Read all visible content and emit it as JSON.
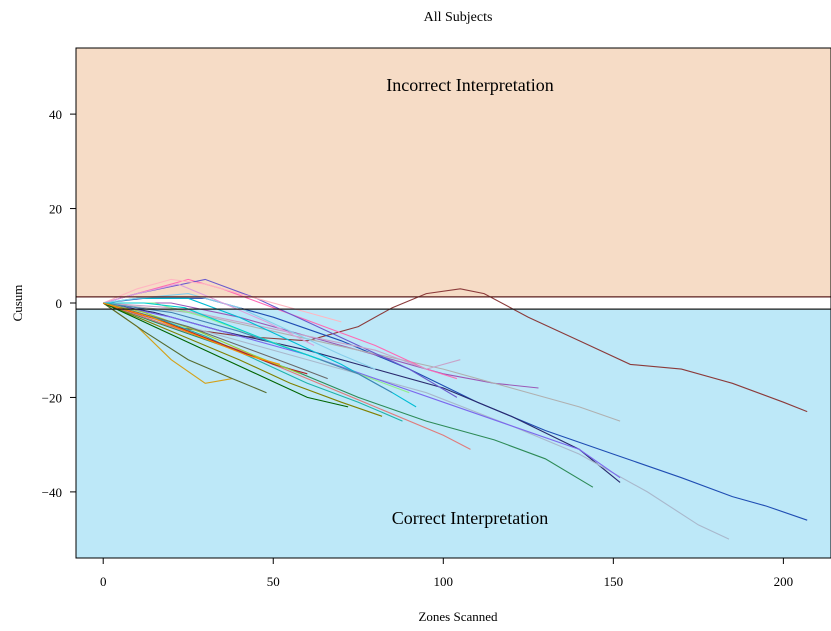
{
  "chart_data": {
    "type": "line",
    "title": "All Subjects",
    "xlabel": "Zones Scanned",
    "ylabel": "Cusum",
    "xlim": [
      -8,
      214
    ],
    "ylim": [
      -54,
      54
    ],
    "x_ticks": [
      0,
      50,
      100,
      150,
      200
    ],
    "y_ticks": [
      -40,
      -20,
      0,
      20,
      40
    ],
    "grid": false,
    "thresholds": {
      "upper": 1.3,
      "lower": -1.3
    },
    "regions": {
      "upper_label": "Incorrect Interpretation",
      "lower_label": "Correct Interpretation",
      "upper_color": "#f6dcc6",
      "lower_color": "#bde8f8"
    },
    "series": [
      {
        "color": "#8b3a3a",
        "points": [
          [
            0,
            0
          ],
          [
            20,
            -5
          ],
          [
            40,
            -7
          ],
          [
            60,
            -8
          ],
          [
            75,
            -5
          ],
          [
            85,
            -1
          ],
          [
            95,
            2
          ],
          [
            105,
            3
          ],
          [
            112,
            2
          ],
          [
            125,
            -3
          ],
          [
            140,
            -8
          ],
          [
            155,
            -13
          ],
          [
            170,
            -14
          ],
          [
            185,
            -17
          ],
          [
            200,
            -21
          ],
          [
            207,
            -23
          ]
        ]
      },
      {
        "color": "#1f4db3",
        "points": [
          [
            0,
            0
          ],
          [
            12,
            1
          ],
          [
            30,
            1
          ],
          [
            50,
            -3
          ],
          [
            70,
            -8
          ],
          [
            90,
            -14
          ],
          [
            110,
            -21
          ],
          [
            130,
            -27
          ],
          [
            150,
            -32
          ],
          [
            170,
            -37
          ],
          [
            185,
            -41
          ],
          [
            195,
            -43
          ],
          [
            207,
            -46
          ]
        ]
      },
      {
        "color": "#2a2a6e",
        "points": [
          [
            0,
            0
          ],
          [
            15,
            -2
          ],
          [
            35,
            -6
          ],
          [
            60,
            -10
          ],
          [
            80,
            -14
          ],
          [
            100,
            -18
          ],
          [
            120,
            -24
          ],
          [
            140,
            -31
          ],
          [
            152,
            -38
          ]
        ]
      },
      {
        "color": "#a9b8cc",
        "points": [
          [
            0,
            0
          ],
          [
            20,
            -4
          ],
          [
            45,
            -9
          ],
          [
            70,
            -14
          ],
          [
            95,
            -19
          ],
          [
            120,
            -26
          ],
          [
            140,
            -32
          ],
          [
            160,
            -40
          ],
          [
            175,
            -47
          ],
          [
            184,
            -50
          ]
        ]
      },
      {
        "color": "#2e8b57",
        "points": [
          [
            0,
            0
          ],
          [
            15,
            -4
          ],
          [
            35,
            -9
          ],
          [
            55,
            -14
          ],
          [
            75,
            -20
          ],
          [
            95,
            -25
          ],
          [
            115,
            -29
          ],
          [
            130,
            -33
          ],
          [
            144,
            -39
          ]
        ]
      },
      {
        "color": "#9b59b6",
        "points": [
          [
            0,
            0
          ],
          [
            20,
            0
          ],
          [
            40,
            -3
          ],
          [
            60,
            -7
          ],
          [
            80,
            -11
          ],
          [
            100,
            -15
          ],
          [
            115,
            -17
          ],
          [
            128,
            -18
          ]
        ]
      },
      {
        "color": "#b0b0b0",
        "points": [
          [
            0,
            0
          ],
          [
            25,
            -2
          ],
          [
            50,
            -6
          ],
          [
            75,
            -10
          ],
          [
            100,
            -14
          ],
          [
            120,
            -18
          ],
          [
            140,
            -22
          ],
          [
            152,
            -25
          ]
        ]
      },
      {
        "color": "#7b68ee",
        "points": [
          [
            0,
            0
          ],
          [
            20,
            -3
          ],
          [
            40,
            -7
          ],
          [
            60,
            -11
          ],
          [
            80,
            -16
          ],
          [
            100,
            -21
          ],
          [
            120,
            -26
          ],
          [
            140,
            -31
          ],
          [
            152,
            -37
          ]
        ]
      },
      {
        "color": "#ff69b4",
        "points": [
          [
            0,
            0
          ],
          [
            15,
            3
          ],
          [
            25,
            5
          ],
          [
            35,
            3
          ],
          [
            50,
            -1
          ],
          [
            65,
            -5
          ],
          [
            80,
            -9
          ],
          [
            95,
            -14
          ],
          [
            104,
            -16
          ]
        ]
      },
      {
        "color": "#6a5acd",
        "points": [
          [
            0,
            0
          ],
          [
            10,
            2
          ],
          [
            30,
            5
          ],
          [
            45,
            1
          ],
          [
            60,
            -4
          ],
          [
            75,
            -9
          ],
          [
            90,
            -14
          ],
          [
            104,
            -20
          ]
        ]
      },
      {
        "color": "#c8a2c8",
        "points": [
          [
            0,
            0
          ],
          [
            20,
            -1
          ],
          [
            40,
            -4
          ],
          [
            60,
            -7
          ],
          [
            80,
            -10
          ],
          [
            95,
            -14
          ],
          [
            105,
            -12
          ]
        ]
      },
      {
        "color": "#00bcd4",
        "points": [
          [
            0,
            0
          ],
          [
            10,
            1
          ],
          [
            25,
            1
          ],
          [
            40,
            -3
          ],
          [
            55,
            -8
          ],
          [
            70,
            -13
          ],
          [
            85,
            -19
          ],
          [
            92,
            -22
          ]
        ]
      },
      {
        "color": "#d4a017",
        "points": [
          [
            0,
            0
          ],
          [
            10,
            -5
          ],
          [
            20,
            -12
          ],
          [
            30,
            -17
          ],
          [
            38,
            -16
          ]
        ]
      },
      {
        "color": "#556b2f",
        "points": [
          [
            0,
            0
          ],
          [
            12,
            -6
          ],
          [
            25,
            -12
          ],
          [
            38,
            -16
          ],
          [
            48,
            -19
          ]
        ]
      },
      {
        "color": "#e07b7b",
        "points": [
          [
            0,
            0
          ],
          [
            20,
            -5
          ],
          [
            40,
            -10
          ],
          [
            60,
            -16
          ],
          [
            80,
            -22
          ],
          [
            100,
            -28
          ],
          [
            108,
            -31
          ]
        ]
      },
      {
        "color": "#20b2aa",
        "points": [
          [
            0,
            0
          ],
          [
            15,
            -3
          ],
          [
            30,
            -7
          ],
          [
            45,
            -12
          ],
          [
            60,
            -17
          ],
          [
            75,
            -21
          ],
          [
            88,
            -25
          ]
        ]
      },
      {
        "color": "#808000",
        "points": [
          [
            0,
            0
          ],
          [
            20,
            -6
          ],
          [
            40,
            -12
          ],
          [
            55,
            -17
          ],
          [
            70,
            -21
          ],
          [
            82,
            -24
          ]
        ]
      },
      {
        "color": "#ffb6c1",
        "points": [
          [
            0,
            0
          ],
          [
            10,
            3
          ],
          [
            20,
            5
          ],
          [
            30,
            4
          ],
          [
            45,
            1
          ],
          [
            60,
            -2
          ],
          [
            70,
            -4
          ]
        ]
      },
      {
        "color": "#90ee90",
        "points": [
          [
            0,
            0
          ],
          [
            15,
            0
          ],
          [
            30,
            -3
          ],
          [
            45,
            -7
          ],
          [
            60,
            -11
          ],
          [
            75,
            -15
          ],
          [
            90,
            -19
          ]
        ]
      },
      {
        "color": "#006400",
        "points": [
          [
            0,
            0
          ],
          [
            15,
            -5
          ],
          [
            30,
            -10
          ],
          [
            45,
            -15
          ],
          [
            60,
            -20
          ],
          [
            72,
            -22
          ]
        ]
      },
      {
        "color": "#4682b4",
        "points": [
          [
            0,
            0
          ],
          [
            20,
            -2
          ],
          [
            40,
            -6
          ],
          [
            60,
            -11
          ],
          [
            75,
            -15
          ],
          [
            85,
            -19
          ]
        ]
      },
      {
        "color": "#b22222",
        "points": [
          [
            0,
            0
          ],
          [
            18,
            -4
          ],
          [
            36,
            -9
          ],
          [
            50,
            -13
          ],
          [
            60,
            -15
          ]
        ]
      },
      {
        "color": "#9acd32",
        "points": [
          [
            0,
            0
          ],
          [
            12,
            -2
          ],
          [
            28,
            -6
          ],
          [
            44,
            -11
          ],
          [
            58,
            -15
          ]
        ]
      },
      {
        "color": "#87ceeb",
        "points": [
          [
            0,
            0
          ],
          [
            10,
            1
          ],
          [
            25,
            2
          ],
          [
            40,
            -1
          ],
          [
            55,
            -6
          ],
          [
            70,
            -11
          ],
          [
            80,
            -14
          ]
        ]
      },
      {
        "color": "#dda0dd",
        "points": [
          [
            0,
            0
          ],
          [
            10,
            2
          ],
          [
            22,
            4
          ],
          [
            32,
            1
          ],
          [
            48,
            -4
          ],
          [
            62,
            -9
          ]
        ]
      },
      {
        "color": "#696969",
        "points": [
          [
            0,
            0
          ],
          [
            10,
            -2
          ],
          [
            25,
            -5
          ],
          [
            40,
            -9
          ],
          [
            55,
            -13
          ],
          [
            66,
            -16
          ]
        ]
      },
      {
        "color": "#00ced1",
        "points": [
          [
            0,
            0
          ],
          [
            12,
            0
          ],
          [
            24,
            -1
          ],
          [
            38,
            -5
          ],
          [
            52,
            -9
          ],
          [
            64,
            -12
          ]
        ]
      },
      {
        "color": "#ff8c00",
        "points": [
          [
            0,
            0
          ],
          [
            14,
            -3
          ],
          [
            28,
            -7
          ],
          [
            42,
            -11
          ],
          [
            52,
            -13
          ]
        ]
      }
    ]
  }
}
